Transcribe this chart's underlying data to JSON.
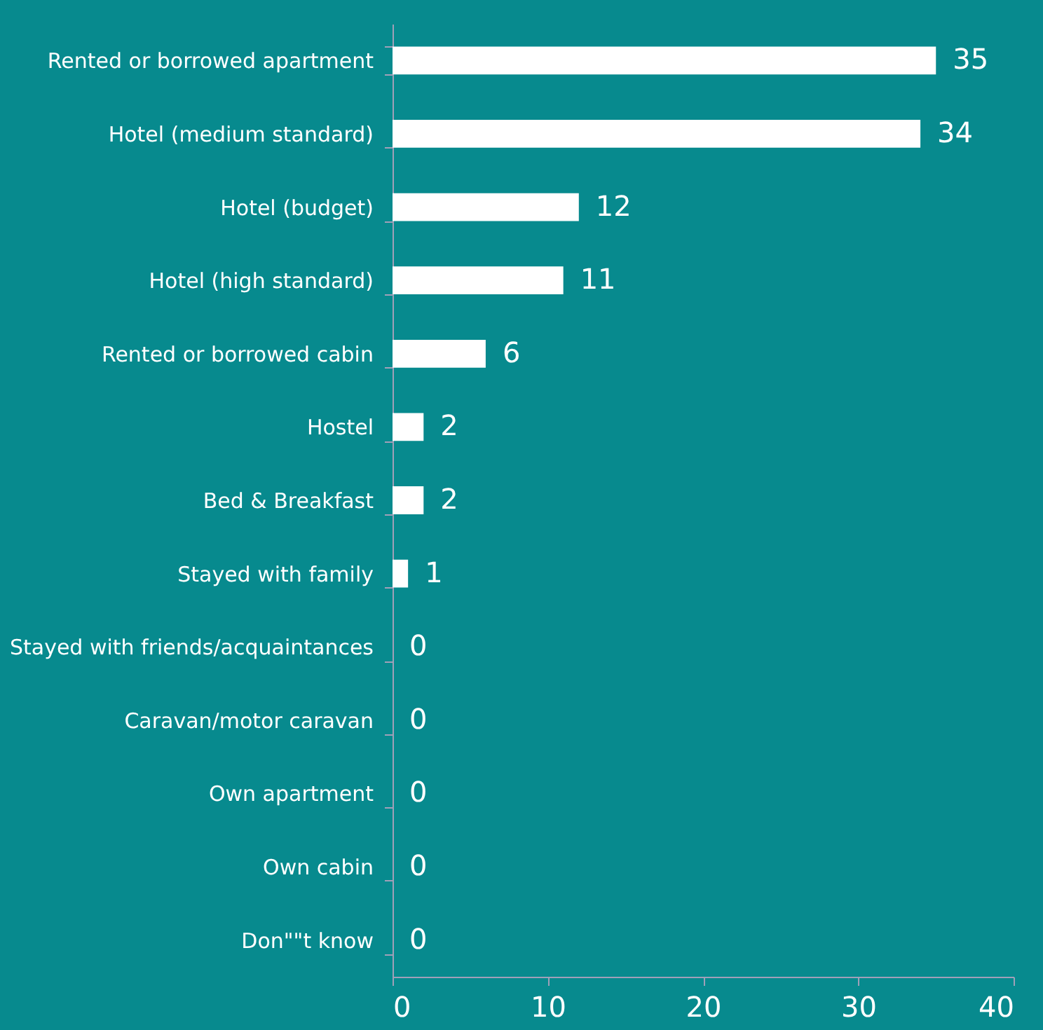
{
  "chart_data": {
    "type": "bar",
    "orientation": "horizontal",
    "categories": [
      "Rented or borrowed apartment",
      "Hotel (medium standard)",
      "Hotel (budget)",
      "Hotel (high standard)",
      "Rented or borrowed cabin",
      "Hostel",
      "Bed & Breakfast",
      "Stayed with family",
      "Stayed with friends/acquaintances",
      "Caravan/motor caravan",
      "Own apartment",
      "Own cabin",
      "Don\"\"t know"
    ],
    "values": [
      35,
      34,
      12,
      11,
      6,
      2,
      2,
      1,
      0,
      0,
      0,
      0,
      0
    ],
    "color": "#ffffff",
    "xlim": [
      0,
      40
    ],
    "xticks": [
      0,
      10,
      20,
      30,
      40
    ],
    "data_labels": true,
    "grid": false
  }
}
